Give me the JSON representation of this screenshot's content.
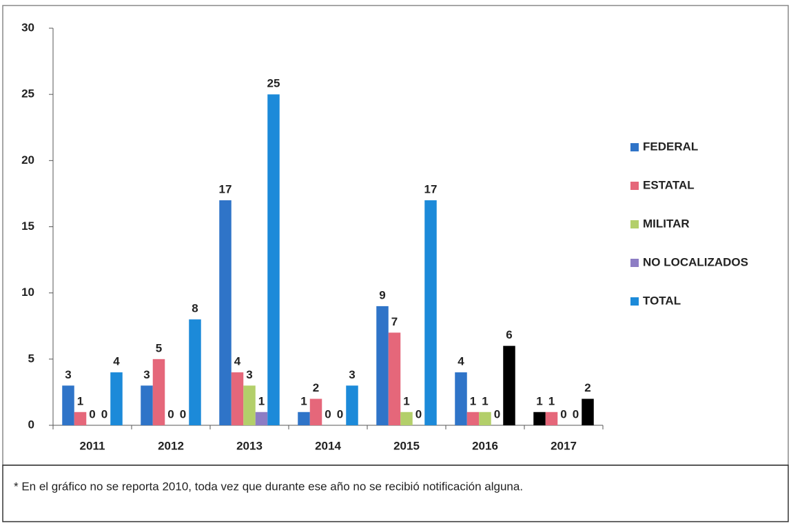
{
  "chart_data": {
    "type": "bar",
    "categories": [
      "2011",
      "2012",
      "2013",
      "2014",
      "2015",
      "2016",
      "2017"
    ],
    "series": [
      {
        "name": "FEDERAL",
        "color": "#2f74c8",
        "colors": [
          "#2f74c8",
          "#2f74c8",
          "#2f74c8",
          "#2f74c8",
          "#2f74c8",
          "#2f74c8",
          "#000000"
        ],
        "values": [
          3,
          3,
          17,
          1,
          9,
          4,
          1
        ]
      },
      {
        "name": "ESTATAL",
        "color": "#e5677a",
        "values": [
          1,
          5,
          4,
          2,
          7,
          1,
          1
        ]
      },
      {
        "name": "MILITAR",
        "color": "#b3cf6a",
        "values": [
          0,
          0,
          3,
          0,
          1,
          1,
          0
        ]
      },
      {
        "name": "NO LOCALIZADOS",
        "color": "#8d7dc4",
        "values": [
          0,
          0,
          1,
          0,
          0,
          0,
          0
        ]
      },
      {
        "name": "TOTAL",
        "color": "#1c8ad9",
        "colors": [
          "#1c8ad9",
          "#1c8ad9",
          "#1c8ad9",
          "#1c8ad9",
          "#1c8ad9",
          "#000000",
          "#000000"
        ],
        "values": [
          4,
          8,
          25,
          3,
          17,
          6,
          2
        ]
      }
    ],
    "ylim": [
      0,
      30
    ],
    "yticks": [
      0,
      5,
      10,
      15,
      20,
      25,
      30
    ],
    "legend": "right",
    "footnote": "* En el gráfico no se reporta 2010, toda vez que durante ese año no se recibió notificación alguna."
  }
}
